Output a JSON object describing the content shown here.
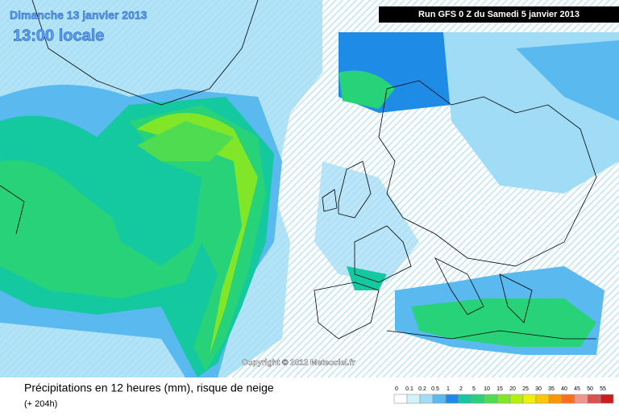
{
  "header": {
    "date": "Dimanche 13 janvier 2013",
    "time": "13:00 locale",
    "run": "Run GFS 0 Z du Samedi 5 janvier 2013"
  },
  "map": {
    "copyright": "Copyright © 2012 Meteociel.fr"
  },
  "footer": {
    "title": "Précipitations en 12 heures (mm), risque de neige",
    "lead": "(+ 204h)"
  },
  "legend": {
    "items": [
      {
        "label": "0",
        "color": "#ffffff"
      },
      {
        "label": "0.1",
        "color": "#d2f2fc"
      },
      {
        "label": "0.2",
        "color": "#a0dcf5"
      },
      {
        "label": "0.5",
        "color": "#5ab9ee"
      },
      {
        "label": "1",
        "color": "#1e8ce6"
      },
      {
        "label": "2",
        "color": "#14c8a0"
      },
      {
        "label": "5",
        "color": "#28d278"
      },
      {
        "label": "10",
        "color": "#50dc50"
      },
      {
        "label": "15",
        "color": "#82e628"
      },
      {
        "label": "20",
        "color": "#b4f00a"
      },
      {
        "label": "25",
        "color": "#f0f000"
      },
      {
        "label": "30",
        "color": "#ffc800"
      },
      {
        "label": "35",
        "color": "#ff9600"
      },
      {
        "label": "40",
        "color": "#ff6e1e"
      },
      {
        "label": "45",
        "color": "#f0968c"
      },
      {
        "label": "50",
        "color": "#dc5050"
      },
      {
        "label": "55",
        "color": "#c81e1e"
      }
    ]
  }
}
